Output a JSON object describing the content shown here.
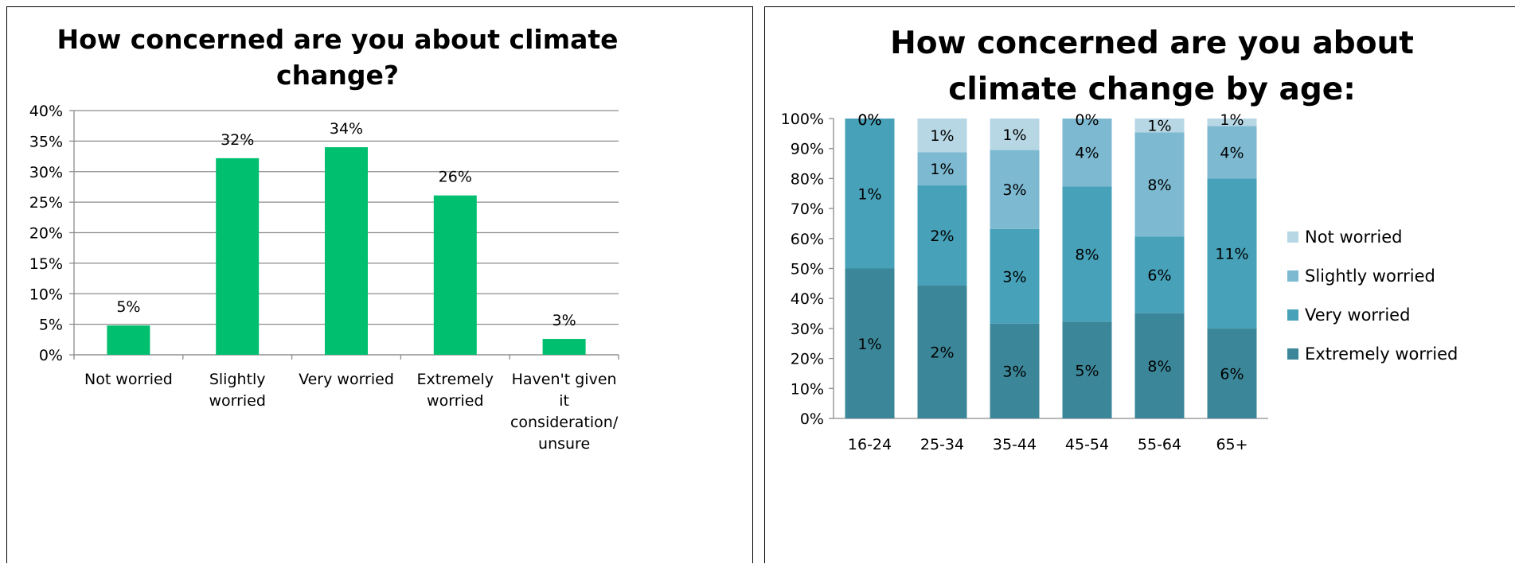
{
  "chart_data": [
    {
      "type": "bar",
      "title_lines": [
        "How concerned are you about climate",
        "change?"
      ],
      "categories": [
        [
          "Not worried"
        ],
        [
          "Slightly",
          "worried"
        ],
        [
          "Very worried"
        ],
        [
          "Extremely",
          "worried"
        ],
        [
          "Haven't given",
          "it",
          "consideration/",
          "unsure"
        ]
      ],
      "values": [
        5,
        32,
        34,
        26,
        3
      ],
      "bar_heights": [
        4.8,
        32.2,
        34.0,
        26.1,
        2.6
      ],
      "data_labels": [
        "5%",
        "32%",
        "34%",
        "26%",
        "3%"
      ],
      "ylim": [
        0,
        40
      ],
      "yticks": [
        "0%",
        "5%",
        "10%",
        "15%",
        "20%",
        "25%",
        "30%",
        "35%",
        "40%"
      ],
      "grid": true,
      "legend": "none",
      "color": "#00BF6F"
    },
    {
      "type": "bar",
      "stacked": "100%",
      "title_lines": [
        "How concerned are you about",
        "climate change by age:"
      ],
      "categories": [
        "16-24",
        "25-34",
        "35-44",
        "45-54",
        "55-64",
        "65+"
      ],
      "series": [
        {
          "name": "Extremely worried",
          "color": "#3B8799",
          "shares": [
            50,
            44.4,
            31.6,
            32.2,
            35.1,
            30.0
          ],
          "labels": [
            "1%",
            "2%",
            "3%",
            "5%",
            "8%",
            "6%"
          ]
        },
        {
          "name": "Very worried",
          "color": "#46A1B9",
          "shares": [
            50,
            33.3,
            31.6,
            45.2,
            25.5,
            50.0
          ],
          "labels": [
            "1%",
            "2%",
            "3%",
            "8%",
            "6%",
            "11%"
          ]
        },
        {
          "name": "Slightly worried",
          "color": "#7DBAD2",
          "shares": [
            0,
            11.1,
            26.3,
            22.6,
            34.8,
            17.5
          ],
          "labels": [
            "0%",
            "1%",
            "3%",
            "4%",
            "8%",
            "4%"
          ]
        },
        {
          "name": "Not worried",
          "color": "#B7D7E4",
          "shares": [
            0,
            11.2,
            10.5,
            0,
            4.6,
            2.5
          ],
          "labels": [
            "0%",
            "1%",
            "1%",
            "0%",
            "1%",
            "1%"
          ]
        }
      ],
      "ylim": [
        0,
        100
      ],
      "yticks": [
        "0%",
        "10%",
        "20%",
        "30%",
        "40%",
        "50%",
        "60%",
        "70%",
        "80%",
        "90%",
        "100%"
      ],
      "grid": false,
      "legend": "right"
    }
  ]
}
